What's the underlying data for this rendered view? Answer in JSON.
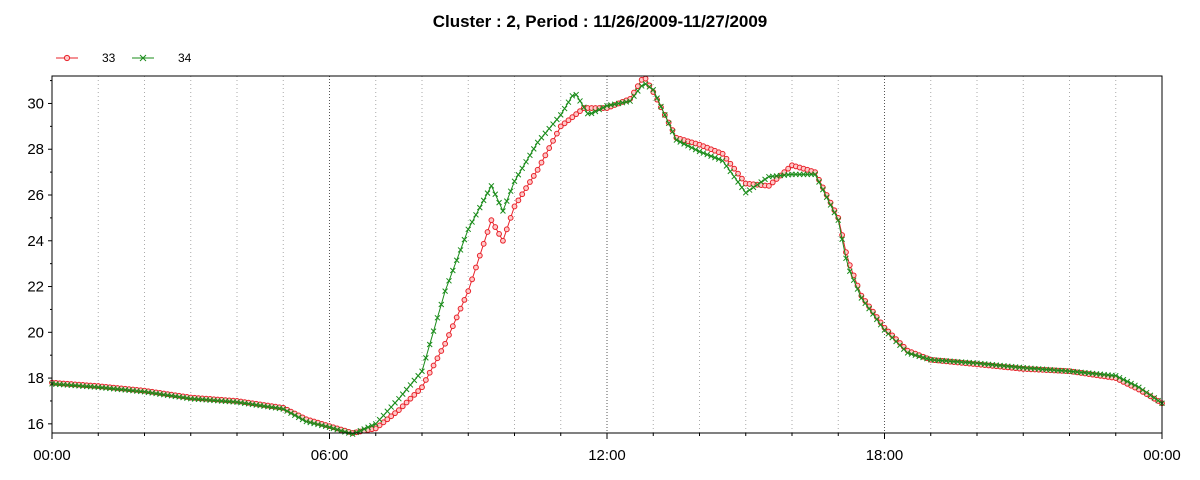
{
  "chart_data": {
    "type": "line",
    "title": "Cluster : 2, Period : 11/26/2009-11/27/2009",
    "xlabel": "",
    "ylabel": "",
    "x_ticks": [
      "00:00",
      "06:00",
      "12:00",
      "18:00",
      "00:00"
    ],
    "y_ticks": [
      16,
      18,
      20,
      22,
      24,
      26,
      28,
      30
    ],
    "ylim": [
      15.6,
      31.2
    ],
    "xlim_hours": [
      0,
      24
    ],
    "grid": true,
    "legend": "top-left",
    "series": [
      {
        "name": "33",
        "color": "#e8222a",
        "marker": "circle",
        "points": [
          [
            0,
            17.8
          ],
          [
            1,
            17.65
          ],
          [
            2,
            17.45
          ],
          [
            3,
            17.15
          ],
          [
            4,
            17.0
          ],
          [
            5,
            16.7
          ],
          [
            5.5,
            16.2
          ],
          [
            6,
            15.9
          ],
          [
            6.5,
            15.6
          ],
          [
            7,
            15.8
          ],
          [
            7.5,
            16.6
          ],
          [
            8,
            17.6
          ],
          [
            8.5,
            19.5
          ],
          [
            9,
            21.8
          ],
          [
            9.5,
            24.9
          ],
          [
            9.75,
            24.0
          ],
          [
            10,
            25.5
          ],
          [
            10.5,
            27.1
          ],
          [
            11,
            29.0
          ],
          [
            11.5,
            29.8
          ],
          [
            12,
            29.8
          ],
          [
            12.5,
            30.2
          ],
          [
            12.8,
            31.2
          ],
          [
            13,
            30.5
          ],
          [
            13.5,
            28.5
          ],
          [
            14,
            28.2
          ],
          [
            14.5,
            27.8
          ],
          [
            15,
            26.5
          ],
          [
            15.5,
            26.4
          ],
          [
            16,
            27.3
          ],
          [
            16.5,
            27.0
          ],
          [
            17,
            25.0
          ],
          [
            17.2,
            23.2
          ],
          [
            17.5,
            21.6
          ],
          [
            18,
            20.2
          ],
          [
            18.5,
            19.2
          ],
          [
            19,
            18.8
          ],
          [
            20,
            18.6
          ],
          [
            21,
            18.4
          ],
          [
            22,
            18.3
          ],
          [
            23,
            18.0
          ],
          [
            23.5,
            17.5
          ],
          [
            24,
            16.9
          ]
        ]
      },
      {
        "name": "34",
        "color": "#1a8c1a",
        "marker": "x",
        "points": [
          [
            0,
            17.75
          ],
          [
            1,
            17.6
          ],
          [
            2,
            17.4
          ],
          [
            3,
            17.1
          ],
          [
            4,
            16.95
          ],
          [
            5,
            16.65
          ],
          [
            5.5,
            16.1
          ],
          [
            6,
            15.85
          ],
          [
            6.5,
            15.55
          ],
          [
            7,
            16.0
          ],
          [
            7.5,
            17.1
          ],
          [
            8,
            18.3
          ],
          [
            8.5,
            21.8
          ],
          [
            9,
            24.5
          ],
          [
            9.5,
            26.4
          ],
          [
            9.75,
            25.3
          ],
          [
            10,
            26.6
          ],
          [
            10.5,
            28.3
          ],
          [
            11,
            29.5
          ],
          [
            11.3,
            30.5
          ],
          [
            11.6,
            29.5
          ],
          [
            12,
            29.9
          ],
          [
            12.5,
            30.1
          ],
          [
            12.8,
            30.9
          ],
          [
            13,
            30.6
          ],
          [
            13.5,
            28.4
          ],
          [
            14,
            27.9
          ],
          [
            14.5,
            27.5
          ],
          [
            15,
            26.1
          ],
          [
            15.5,
            26.8
          ],
          [
            16,
            26.9
          ],
          [
            16.5,
            26.9
          ],
          [
            17,
            24.9
          ],
          [
            17.2,
            22.9
          ],
          [
            17.5,
            21.5
          ],
          [
            18,
            20.1
          ],
          [
            18.5,
            19.1
          ],
          [
            19,
            18.8
          ],
          [
            20,
            18.65
          ],
          [
            21,
            18.45
          ],
          [
            22,
            18.3
          ],
          [
            23,
            18.1
          ],
          [
            23.5,
            17.6
          ],
          [
            24,
            16.9
          ]
        ]
      }
    ]
  }
}
